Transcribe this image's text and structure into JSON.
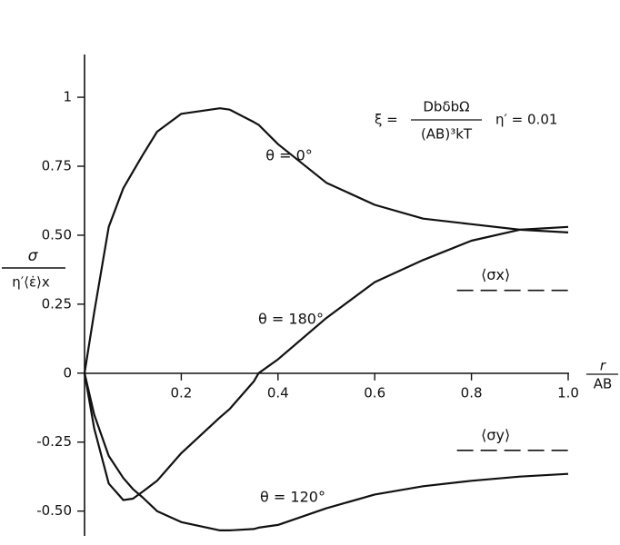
{
  "chart_data": {
    "type": "line",
    "y_label": {
      "numerator": "σ",
      "denominator": "η′⟨ε̇⟩x"
    },
    "x_label": {
      "numerator": "r",
      "denominator": "AB"
    },
    "equation": {
      "lhs": "ξ =",
      "numerator": "DbδbΩ",
      "denominator": "(AB)³kT",
      "eta": "η′ = 0.01"
    },
    "x": [
      0,
      0.02,
      0.05,
      0.08,
      0.1,
      0.12,
      0.15,
      0.2,
      0.28,
      0.3,
      0.35,
      0.36,
      0.4,
      0.5,
      0.6,
      0.7,
      0.8,
      0.9,
      1.0
    ],
    "series": [
      {
        "name": "θ = 0°",
        "color": "#111111",
        "values": [
          0,
          0.22,
          0.53,
          0.67,
          0.73,
          0.79,
          0.875,
          0.94,
          0.96,
          0.955,
          0.91,
          0.9,
          0.83,
          0.69,
          0.61,
          0.56,
          0.54,
          0.52,
          0.51
        ]
      },
      {
        "name": "θ = 180°",
        "color": "#111111",
        "values": [
          0,
          -0.2,
          -0.4,
          -0.46,
          -0.455,
          -0.43,
          -0.39,
          -0.29,
          -0.16,
          -0.13,
          -0.03,
          0,
          0.05,
          0.2,
          0.33,
          0.41,
          0.48,
          0.52,
          0.53
        ]
      },
      {
        "name": "θ = 120°",
        "color": "#111111",
        "values": [
          0,
          -0.15,
          -0.3,
          -0.38,
          -0.42,
          -0.45,
          -0.5,
          -0.54,
          -0.57,
          -0.57,
          -0.565,
          -0.56,
          -0.55,
          -0.49,
          -0.44,
          -0.41,
          -0.39,
          -0.375,
          -0.365
        ]
      }
    ],
    "reference_lines": [
      {
        "label": "⟨σx⟩",
        "value": 0.3
      },
      {
        "label": "⟨σy⟩",
        "value": -0.28
      }
    ],
    "xlim": [
      0,
      1.0
    ],
    "ylim": [
      -0.59,
      1.155
    ],
    "xticks": [
      0.2,
      0.4,
      0.6,
      0.8,
      {
        "value": 1.0,
        "label": "1.0"
      }
    ],
    "yticks": [
      1,
      0.75,
      {
        "value": 0.5,
        "label": "0.50"
      },
      0.25,
      0,
      -0.25,
      {
        "value": -0.5,
        "label": "-0.50"
      }
    ],
    "grid": false
  }
}
